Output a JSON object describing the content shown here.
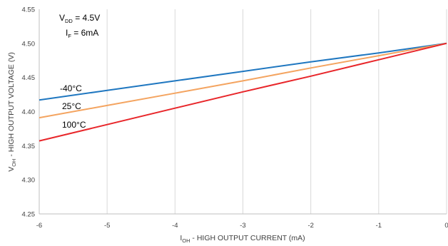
{
  "chart_data": {
    "type": "line",
    "xlabel": {
      "main": "I",
      "sub": "OH",
      "rest": " - HIGH OUTPUT CURRENT (mA)"
    },
    "ylabel": {
      "main": "V",
      "sub": "OH",
      "rest": " - HIGH OUTPUT VOLTAGE (V)"
    },
    "xlim": [
      -6,
      0
    ],
    "ylim": [
      4.25,
      4.55
    ],
    "x_ticks": [
      "-6",
      "-5",
      "-4",
      "-3",
      "-2",
      "-1",
      "0"
    ],
    "y_ticks": [
      "4.25",
      "4.30",
      "4.35",
      "4.40",
      "4.45",
      "4.50",
      "4.55"
    ],
    "grid": "vertical",
    "annotations": {
      "vdd": {
        "main": "V",
        "sub": "DD",
        "rest": " = 4.5V"
      },
      "if": {
        "main": "I",
        "sub": "F",
        "rest": " = 6mA"
      }
    },
    "series": [
      {
        "name": "-40°C",
        "color": "#1f77c0",
        "x": [
          -6,
          -5,
          -4,
          -3,
          -2,
          -1,
          0
        ],
        "y": [
          4.417,
          4.431,
          4.445,
          4.459,
          4.473,
          4.486,
          4.5
        ]
      },
      {
        "name": "25°C",
        "color": "#f4a460",
        "x": [
          -6,
          -5,
          -4,
          -3,
          -2,
          -1,
          0
        ],
        "y": [
          4.391,
          4.409,
          4.427,
          4.445,
          4.464,
          4.482,
          4.5
        ]
      },
      {
        "name": "100°C",
        "color": "#e8262a",
        "x": [
          -6,
          -5,
          -4,
          -3,
          -2,
          -1,
          0
        ],
        "y": [
          4.357,
          4.381,
          4.405,
          4.429,
          4.452,
          4.476,
          4.5
        ]
      }
    ]
  }
}
